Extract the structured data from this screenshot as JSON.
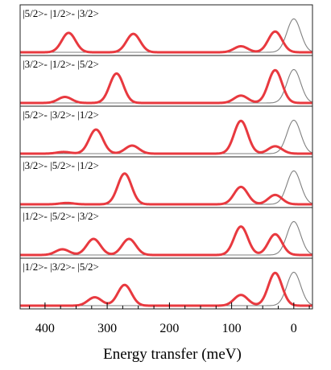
{
  "chart_data": {
    "type": "line",
    "xlabel": "Energy transfer (meV)",
    "xlim": [
      440,
      -30
    ],
    "x_ticks": [
      400,
      300,
      200,
      100,
      0
    ],
    "x_tick_labels": [
      "400",
      "300",
      "200",
      "100",
      "0"
    ],
    "grid": false,
    "legend": "none",
    "reference_peak": {
      "center": 0,
      "width": 11,
      "color": "#808080"
    },
    "colors": {
      "spectrum": "#e8393f",
      "reference": "#808080",
      "axis": "#000000",
      "frame": "#222222"
    },
    "panels": [
      {
        "label": "|5/2>- |1/2>- |3/2>",
        "peaks": [
          {
            "energy": 362,
            "height": 0.58
          },
          {
            "energy": 258,
            "height": 0.55
          },
          {
            "energy": 85,
            "height": 0.18
          },
          {
            "energy": 30,
            "height": 0.62
          }
        ]
      },
      {
        "label": "|3/2>- |1/2>- |5/2>",
        "peaks": [
          {
            "energy": 368,
            "height": 0.18
          },
          {
            "energy": 285,
            "height": 0.88
          },
          {
            "energy": 85,
            "height": 0.22
          },
          {
            "energy": 30,
            "height": 0.98
          }
        ]
      },
      {
        "label": "|5/2>- |3/2>- |1/2>",
        "peaks": [
          {
            "energy": 370,
            "height": 0.05
          },
          {
            "energy": 318,
            "height": 0.72
          },
          {
            "energy": 260,
            "height": 0.24
          },
          {
            "energy": 85,
            "height": 0.98
          },
          {
            "energy": 30,
            "height": 0.22
          }
        ]
      },
      {
        "label": "|3/2>- |5/2>- |1/2>",
        "peaks": [
          {
            "energy": 365,
            "height": 0.04
          },
          {
            "energy": 272,
            "height": 0.92
          },
          {
            "energy": 85,
            "height": 0.52
          },
          {
            "energy": 30,
            "height": 0.28
          }
        ]
      },
      {
        "label": "|1/2>- |5/2>- |3/2>",
        "peaks": [
          {
            "energy": 372,
            "height": 0.17
          },
          {
            "energy": 322,
            "height": 0.48
          },
          {
            "energy": 265,
            "height": 0.48
          },
          {
            "energy": 85,
            "height": 0.85
          },
          {
            "energy": 30,
            "height": 0.62
          }
        ]
      },
      {
        "label": "|1/2>- |3/2>- |5/2>",
        "peaks": [
          {
            "energy": 320,
            "height": 0.25
          },
          {
            "energy": 272,
            "height": 0.62
          },
          {
            "energy": 85,
            "height": 0.32
          },
          {
            "energy": 30,
            "height": 0.98
          }
        ]
      }
    ]
  }
}
